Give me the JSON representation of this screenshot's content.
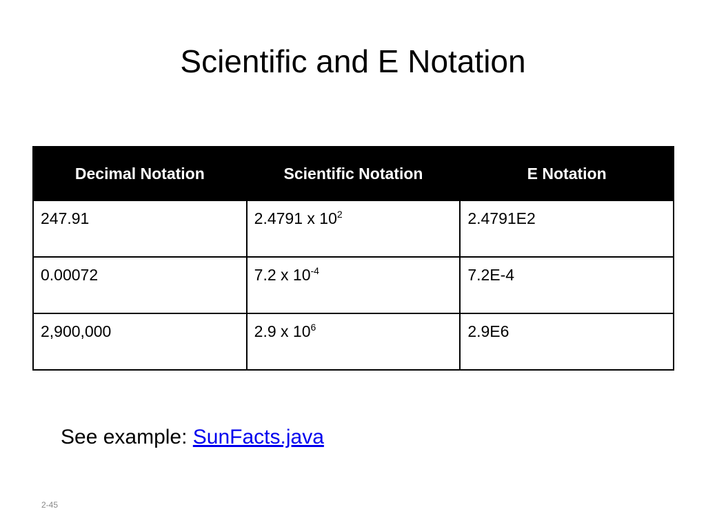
{
  "header": {
    "title": "Scientific and E Notation"
  },
  "table": {
    "columns": [
      "Decimal Notation",
      "Scientific Notation",
      "E Notation"
    ],
    "rows": [
      [
        "247.91",
        {
          "base": "2.4791 x 10",
          "exponent": "2"
        },
        "2.4791E2"
      ],
      [
        "0.00072",
        {
          "base": "7.2 x 10",
          "exponent": "-4"
        },
        "7.2E-4"
      ],
      [
        "2,900,000",
        {
          "base": "2.9 x 10",
          "exponent": "6"
        },
        "2.9E6"
      ]
    ]
  },
  "footer": {
    "prefix": "See example: ",
    "link": "SunFacts.java"
  },
  "slide_number": "2-45"
}
